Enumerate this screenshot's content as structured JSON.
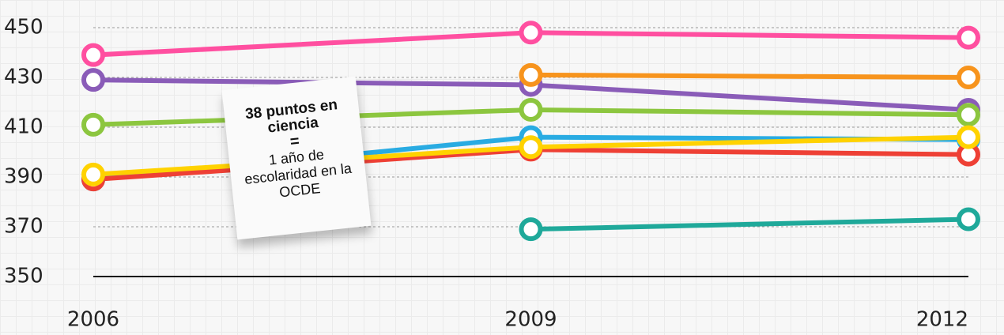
{
  "chart_data": {
    "type": "line",
    "categories": [
      "2006",
      "2009",
      "2012"
    ],
    "series": [
      {
        "color": "#ff4fa0",
        "values": [
          439,
          448,
          446
        ]
      },
      {
        "color": "#8a5cb8",
        "values": [
          429,
          427,
          417
        ]
      },
      {
        "color": "#f7941d",
        "values": [
          null,
          431,
          430
        ]
      },
      {
        "color": "#8cc63f",
        "values": [
          411,
          417,
          415
        ]
      },
      {
        "color": "#29abe2",
        "values": [
          389,
          406,
          405
        ]
      },
      {
        "color": "#ee4035",
        "values": [
          389,
          401,
          399
        ]
      },
      {
        "color": "#ffd200",
        "values": [
          391,
          402,
          406
        ]
      },
      {
        "color": "#1fa99a",
        "values": [
          null,
          369,
          373
        ]
      }
    ],
    "ylim": [
      350,
      450
    ],
    "yticks": [
      350,
      370,
      390,
      410,
      430,
      450
    ],
    "grid": true,
    "annotation": {
      "title": "38 puntos en ciencia",
      "equals": "=",
      "text": "1 año de escolaridad en la OCDE"
    }
  }
}
